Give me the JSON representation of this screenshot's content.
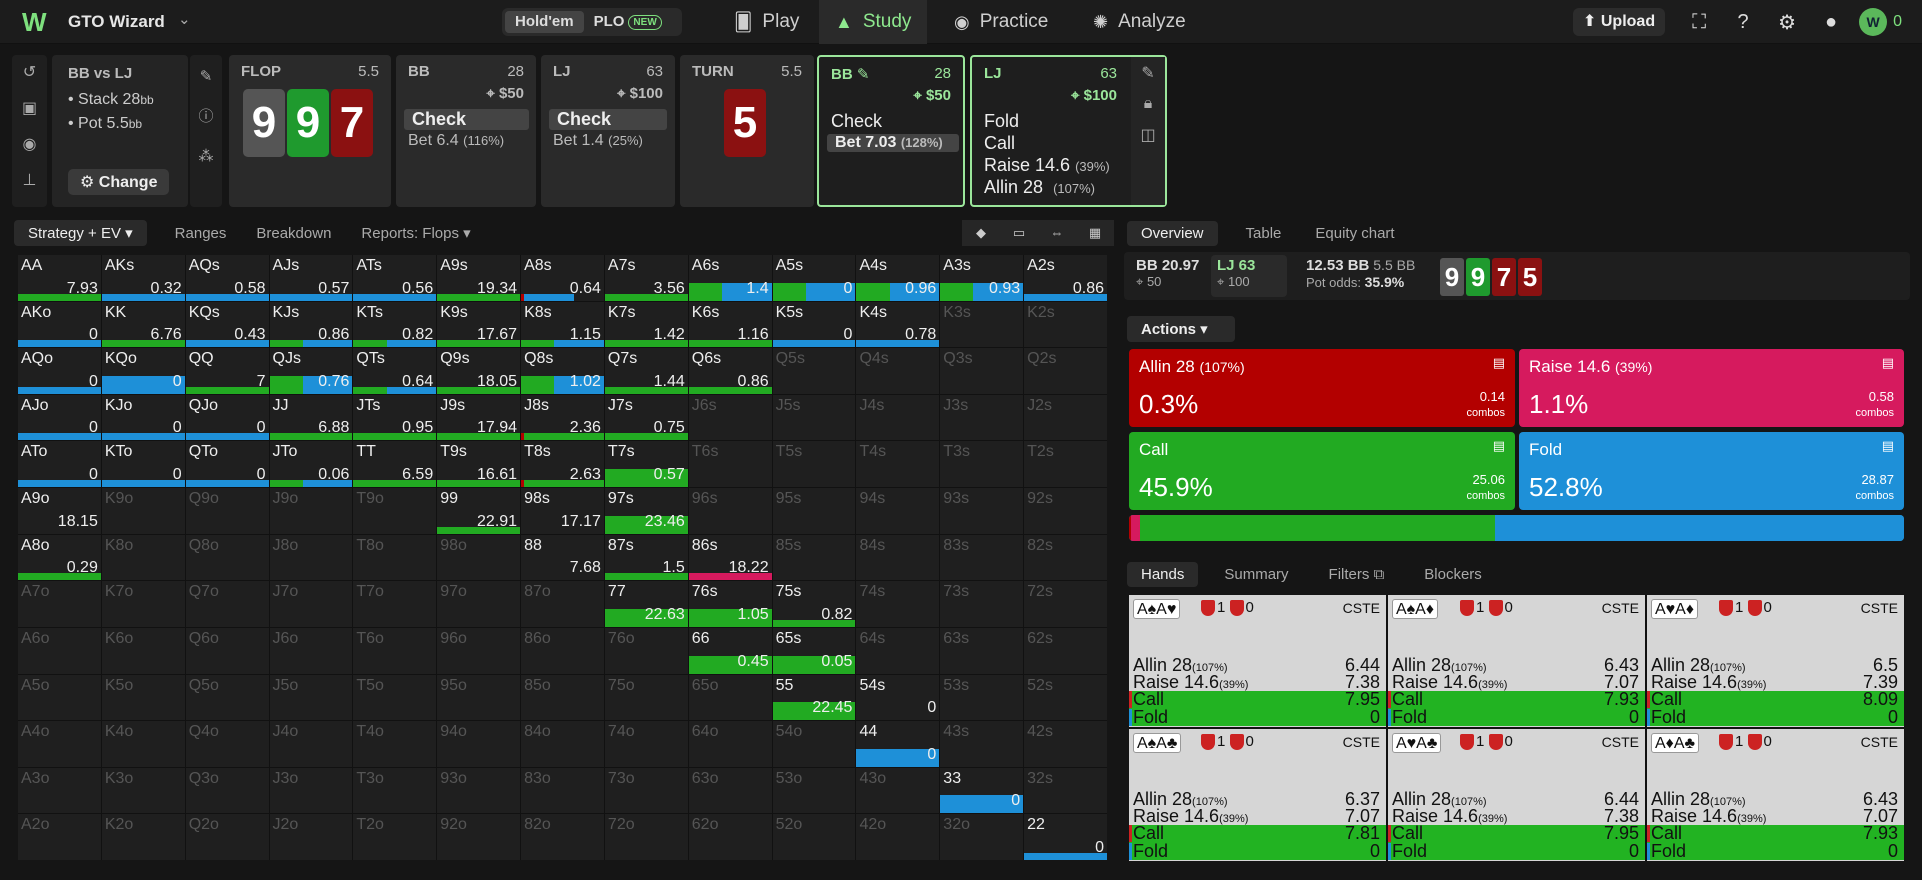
{
  "app": {
    "name": "GTO Wizard",
    "mode_holdem": "Hold'em",
    "mode_plo": "PLO",
    "plo_badge": "NEW",
    "coins": "0"
  },
  "nav": [
    {
      "label": "Play",
      "icon": "cards-icon"
    },
    {
      "label": "Study",
      "icon": "graduation-cap-icon"
    },
    {
      "label": "Practice",
      "icon": "gamepad-icon"
    },
    {
      "label": "Analyze",
      "icon": "lightbulb-icon"
    }
  ],
  "top": {
    "upload": "Upload"
  },
  "scenario": {
    "title": "BB vs LJ",
    "stack_label": "Stack 28",
    "stack_unit": "bb",
    "pot_label": "Pot 5.5",
    "pot_unit": "bb",
    "change": "Change"
  },
  "flop": {
    "label": "FLOP",
    "pot": "5.5",
    "cards": [
      {
        "r": "9",
        "color": "grey"
      },
      {
        "r": "9",
        "color": "green"
      },
      {
        "r": "7",
        "color": "red"
      }
    ]
  },
  "bb1": {
    "label": "BB",
    "stack": "28",
    "bet": "$50",
    "act1": "Check",
    "act2": "Bet 6.4",
    "act2_pct": "(116%)"
  },
  "lj1": {
    "label": "LJ",
    "stack": "63",
    "bet": "$100",
    "act1": "Check",
    "act2": "Bet 1.4",
    "act2_pct": "(25%)"
  },
  "turn": {
    "label": "TURN",
    "pot": "5.5",
    "card": "5"
  },
  "bb2": {
    "label": "BB",
    "stack": "28",
    "bet": "$50",
    "act1": "Check",
    "act2": "Bet 7.03",
    "act2_pct": "(128%)"
  },
  "lj2": {
    "label": "LJ",
    "stack": "63",
    "bet": "$100",
    "act1": "Fold",
    "act2": "Call",
    "act3": "Raise 14.6",
    "act3_pct": "(39%)",
    "act4": "Allin 28",
    "act4_pct": "(107%)"
  },
  "leftTabs": [
    "Strategy + EV",
    "Ranges",
    "Breakdown",
    "Reports: Flops"
  ],
  "rightTabs": [
    "Overview",
    "Table",
    "Equity chart"
  ],
  "stats": {
    "bb": "BB 20.97",
    "bb_sub": "50",
    "lj": "LJ 63",
    "lj_sub": "100",
    "pot": "12.53 BB",
    "pot2": "5.5 BB",
    "odds_label": "Pot odds:",
    "odds": "35.9%",
    "board": [
      "9",
      "9",
      "7",
      "5"
    ]
  },
  "actions_label": "Actions",
  "actions": [
    {
      "name": "Allin 28",
      "pct_label": "(107%)",
      "freq": "0.3%",
      "combos": "0.14",
      "unit": "combos",
      "color": "#b30000"
    },
    {
      "name": "Raise 14.6",
      "pct_label": "(39%)",
      "freq": "1.1%",
      "combos": "0.58",
      "unit": "combos",
      "color": "#d61a5e"
    },
    {
      "name": "Call",
      "pct_label": "",
      "freq": "45.9%",
      "combos": "25.06",
      "unit": "combos",
      "color": "#22aa22"
    },
    {
      "name": "Fold",
      "pct_label": "",
      "freq": "52.8%",
      "combos": "28.87",
      "unit": "combos",
      "color": "#1e90d8"
    }
  ],
  "freqbar": [
    {
      "v": 0.3,
      "c": "#b30000"
    },
    {
      "v": 1.1,
      "c": "#d61a5e"
    },
    {
      "v": 45.9,
      "c": "#22aa22"
    },
    {
      "v": 52.8,
      "c": "#1e90d8"
    }
  ],
  "handTabs": [
    "Hands",
    "Summary",
    "Filters",
    "Blockers"
  ],
  "hands": [
    {
      "cards": "A♠A♥",
      "b1": "1",
      "b2": "0",
      "tag": "CSTE",
      "allin": "6.44",
      "raise": "7.38",
      "call": "7.95",
      "fold": "0"
    },
    {
      "cards": "A♠A♦",
      "b1": "1",
      "b2": "0",
      "tag": "CSTE",
      "allin": "6.43",
      "raise": "7.07",
      "call": "7.93",
      "fold": "0"
    },
    {
      "cards": "A♥A♦",
      "b1": "1",
      "b2": "0",
      "tag": "CSTE",
      "allin": "6.5",
      "raise": "7.39",
      "call": "8.09",
      "fold": "0"
    },
    {
      "cards": "A♠A♣",
      "b1": "1",
      "b2": "0",
      "tag": "CSTE",
      "allin": "6.37",
      "raise": "7.07",
      "call": "7.81",
      "fold": "0"
    },
    {
      "cards": "A♥A♣",
      "b1": "1",
      "b2": "0",
      "tag": "CSTE",
      "allin": "6.44",
      "raise": "7.38",
      "call": "7.95",
      "fold": "0"
    },
    {
      "cards": "A♦A♣",
      "b1": "1",
      "b2": "0",
      "tag": "CSTE",
      "allin": "6.43",
      "raise": "7.07",
      "call": "7.93",
      "fold": "0"
    }
  ],
  "hand_labels": {
    "allin": "Allin 28",
    "allin_pct": "(107%)",
    "raise": "Raise 14.6",
    "raise_pct": "(39%)",
    "call": "Call",
    "fold": "Fold"
  },
  "grid": [
    [
      {
        "n": "AA",
        "ev": "7.93",
        "s": "g"
      },
      {
        "n": "AKs",
        "ev": "0.32",
        "s": "b"
      },
      {
        "n": "AQs",
        "ev": "0.58",
        "s": "b"
      },
      {
        "n": "AJs",
        "ev": "0.57",
        "s": "b"
      },
      {
        "n": "ATs",
        "ev": "0.56",
        "s": "b"
      },
      {
        "n": "A9s",
        "ev": "19.34",
        "s": "g"
      },
      {
        "n": "A8s",
        "ev": "0.64",
        "s": "rb"
      },
      {
        "n": "A7s",
        "ev": "3.56",
        "s": "g"
      },
      {
        "n": "A6s",
        "ev": "1.4",
        "s": "gbT"
      },
      {
        "n": "A5s",
        "ev": "0",
        "s": "gbT"
      },
      {
        "n": "A4s",
        "ev": "0.96",
        "s": "gbT"
      },
      {
        "n": "A3s",
        "ev": "0.93",
        "s": "gbT"
      },
      {
        "n": "A2s",
        "ev": "0.86",
        "s": "b"
      }
    ],
    [
      {
        "n": "AKo",
        "ev": "0",
        "s": "b"
      },
      {
        "n": "KK",
        "ev": "6.76",
        "s": "g"
      },
      {
        "n": "KQs",
        "ev": "0.43",
        "s": "b"
      },
      {
        "n": "KJs",
        "ev": "0.86",
        "s": "gb"
      },
      {
        "n": "KTs",
        "ev": "0.82",
        "s": "gb"
      },
      {
        "n": "K9s",
        "ev": "17.67",
        "s": "g"
      },
      {
        "n": "K8s",
        "ev": "1.15",
        "s": "gb"
      },
      {
        "n": "K7s",
        "ev": "1.42",
        "s": "g"
      },
      {
        "n": "K6s",
        "ev": "1.16",
        "s": "g"
      },
      {
        "n": "K5s",
        "ev": "0",
        "s": "b"
      },
      {
        "n": "K4s",
        "ev": "0.78",
        "s": "b"
      },
      {
        "n": "K3s",
        "d": 1
      },
      {
        "n": "K2s",
        "d": 1
      }
    ],
    [
      {
        "n": "AQo",
        "ev": "0",
        "s": "b"
      },
      {
        "n": "KQo",
        "ev": "0",
        "s": "bT"
      },
      {
        "n": "QQ",
        "ev": "7",
        "s": "g"
      },
      {
        "n": "QJs",
        "ev": "0.76",
        "s": "gbT"
      },
      {
        "n": "QTs",
        "ev": "0.64",
        "s": "gb"
      },
      {
        "n": "Q9s",
        "ev": "18.05",
        "s": "g"
      },
      {
        "n": "Q8s",
        "ev": "1.02",
        "s": "gbT"
      },
      {
        "n": "Q7s",
        "ev": "1.44",
        "s": "g"
      },
      {
        "n": "Q6s",
        "ev": "0.86",
        "s": "g"
      },
      {
        "n": "Q5s",
        "d": 1
      },
      {
        "n": "Q4s",
        "d": 1
      },
      {
        "n": "Q3s",
        "d": 1
      },
      {
        "n": "Q2s",
        "d": 1
      }
    ],
    [
      {
        "n": "AJo",
        "ev": "0",
        "s": "b"
      },
      {
        "n": "KJo",
        "ev": "0",
        "s": "b"
      },
      {
        "n": "QJo",
        "ev": "0",
        "s": "b"
      },
      {
        "n": "JJ",
        "ev": "6.88",
        "s": "g"
      },
      {
        "n": "JTs",
        "ev": "0.95",
        "s": "g"
      },
      {
        "n": "J9s",
        "ev": "17.94",
        "s": "g"
      },
      {
        "n": "J8s",
        "ev": "2.36",
        "s": "rg"
      },
      {
        "n": "J7s",
        "ev": "0.75",
        "s": "g"
      },
      {
        "n": "J6s",
        "d": 1
      },
      {
        "n": "J5s",
        "d": 1
      },
      {
        "n": "J4s",
        "d": 1
      },
      {
        "n": "J3s",
        "d": 1
      },
      {
        "n": "J2s",
        "d": 1
      }
    ],
    [
      {
        "n": "ATo",
        "ev": "0",
        "s": "b"
      },
      {
        "n": "KTo",
        "ev": "0",
        "s": "b"
      },
      {
        "n": "QTo",
        "ev": "0",
        "s": "b"
      },
      {
        "n": "JTo",
        "ev": "0.06",
        "s": "gb"
      },
      {
        "n": "TT",
        "ev": "6.59",
        "s": "g"
      },
      {
        "n": "T9s",
        "ev": "16.61",
        "s": "g"
      },
      {
        "n": "T8s",
        "ev": "2.63",
        "s": "rg"
      },
      {
        "n": "T7s",
        "ev": "0.57",
        "s": "gT"
      },
      {
        "n": "T6s",
        "d": 1
      },
      {
        "n": "T5s",
        "d": 1
      },
      {
        "n": "T4s",
        "d": 1
      },
      {
        "n": "T3s",
        "d": 1
      },
      {
        "n": "T2s",
        "d": 1
      }
    ],
    [
      {
        "n": "A9o",
        "ev": "18.15",
        "s": ""
      },
      {
        "n": "K9o",
        "d": 1
      },
      {
        "n": "Q9o",
        "d": 1
      },
      {
        "n": "J9o",
        "d": 1
      },
      {
        "n": "T9o",
        "d": 1
      },
      {
        "n": "99",
        "ev": "22.91",
        "s": "g"
      },
      {
        "n": "98s",
        "ev": "17.17",
        "s": ""
      },
      {
        "n": "97s",
        "ev": "23.46",
        "s": "gT"
      },
      {
        "n": "96s",
        "d": 1
      },
      {
        "n": "95s",
        "d": 1
      },
      {
        "n": "94s",
        "d": 1
      },
      {
        "n": "93s",
        "d": 1
      },
      {
        "n": "92s",
        "d": 1
      }
    ],
    [
      {
        "n": "A8o",
        "ev": "0.29",
        "s": "g"
      },
      {
        "n": "K8o",
        "d": 1
      },
      {
        "n": "Q8o",
        "d": 1
      },
      {
        "n": "J8o",
        "d": 1
      },
      {
        "n": "T8o",
        "d": 1
      },
      {
        "n": "98o",
        "d": 1
      },
      {
        "n": "88",
        "ev": "7.68",
        "s": ""
      },
      {
        "n": "87s",
        "ev": "1.5",
        "s": "g"
      },
      {
        "n": "86s",
        "ev": "18.22",
        "s": "p"
      },
      {
        "n": "85s",
        "d": 1
      },
      {
        "n": "84s",
        "d": 1
      },
      {
        "n": "83s",
        "d": 1
      },
      {
        "n": "82s",
        "d": 1
      }
    ],
    [
      {
        "n": "A7o",
        "d": 1
      },
      {
        "n": "K7o",
        "d": 1
      },
      {
        "n": "Q7o",
        "d": 1
      },
      {
        "n": "J7o",
        "d": 1
      },
      {
        "n": "T7o",
        "d": 1
      },
      {
        "n": "97o",
        "d": 1
      },
      {
        "n": "87o",
        "d": 1
      },
      {
        "n": "77",
        "ev": "22.63",
        "s": "gT"
      },
      {
        "n": "76s",
        "ev": "1.05",
        "s": "gT"
      },
      {
        "n": "75s",
        "ev": "0.82",
        "s": "g"
      },
      {
        "n": "74s",
        "d": 1
      },
      {
        "n": "73s",
        "d": 1
      },
      {
        "n": "72s",
        "d": 1
      }
    ],
    [
      {
        "n": "A6o",
        "d": 1
      },
      {
        "n": "K6o",
        "d": 1
      },
      {
        "n": "Q6o",
        "d": 1
      },
      {
        "n": "J6o",
        "d": 1
      },
      {
        "n": "T6o",
        "d": 1
      },
      {
        "n": "96o",
        "d": 1
      },
      {
        "n": "86o",
        "d": 1
      },
      {
        "n": "76o",
        "d": 1
      },
      {
        "n": "66",
        "ev": "0.45",
        "s": "gT"
      },
      {
        "n": "65s",
        "ev": "0.05",
        "s": "gT"
      },
      {
        "n": "64s",
        "d": 1
      },
      {
        "n": "63s",
        "d": 1
      },
      {
        "n": "62s",
        "d": 1
      }
    ],
    [
      {
        "n": "A5o",
        "d": 1
      },
      {
        "n": "K5o",
        "d": 1
      },
      {
        "n": "Q5o",
        "d": 1
      },
      {
        "n": "J5o",
        "d": 1
      },
      {
        "n": "T5o",
        "d": 1
      },
      {
        "n": "95o",
        "d": 1
      },
      {
        "n": "85o",
        "d": 1
      },
      {
        "n": "75o",
        "d": 1
      },
      {
        "n": "65o",
        "d": 1
      },
      {
        "n": "55",
        "ev": "22.45",
        "s": "gT"
      },
      {
        "n": "54s",
        "ev": "0",
        "s": ""
      },
      {
        "n": "53s",
        "d": 1
      },
      {
        "n": "52s",
        "d": 1
      }
    ],
    [
      {
        "n": "A4o",
        "d": 1
      },
      {
        "n": "K4o",
        "d": 1
      },
      {
        "n": "Q4o",
        "d": 1
      },
      {
        "n": "J4o",
        "d": 1
      },
      {
        "n": "T4o",
        "d": 1
      },
      {
        "n": "94o",
        "d": 1
      },
      {
        "n": "84o",
        "d": 1
      },
      {
        "n": "74o",
        "d": 1
      },
      {
        "n": "64o",
        "d": 1
      },
      {
        "n": "54o",
        "d": 1
      },
      {
        "n": "44",
        "ev": "0",
        "s": "bT"
      },
      {
        "n": "43s",
        "d": 1
      },
      {
        "n": "42s",
        "d": 1
      }
    ],
    [
      {
        "n": "A3o",
        "d": 1
      },
      {
        "n": "K3o",
        "d": 1
      },
      {
        "n": "Q3o",
        "d": 1
      },
      {
        "n": "J3o",
        "d": 1
      },
      {
        "n": "T3o",
        "d": 1
      },
      {
        "n": "93o",
        "d": 1
      },
      {
        "n": "83o",
        "d": 1
      },
      {
        "n": "73o",
        "d": 1
      },
      {
        "n": "63o",
        "d": 1
      },
      {
        "n": "53o",
        "d": 1
      },
      {
        "n": "43o",
        "d": 1
      },
      {
        "n": "33",
        "ev": "0",
        "s": "bT"
      },
      {
        "n": "32s",
        "d": 1
      }
    ],
    [
      {
        "n": "A2o",
        "d": 1
      },
      {
        "n": "K2o",
        "d": 1
      },
      {
        "n": "Q2o",
        "d": 1
      },
      {
        "n": "J2o",
        "d": 1
      },
      {
        "n": "T2o",
        "d": 1
      },
      {
        "n": "92o",
        "d": 1
      },
      {
        "n": "82o",
        "d": 1
      },
      {
        "n": "72o",
        "d": 1
      },
      {
        "n": "62o",
        "d": 1
      },
      {
        "n": "52o",
        "d": 1
      },
      {
        "n": "42o",
        "d": 1
      },
      {
        "n": "32o",
        "d": 1
      },
      {
        "n": "22",
        "ev": "0",
        "s": "b"
      }
    ]
  ]
}
